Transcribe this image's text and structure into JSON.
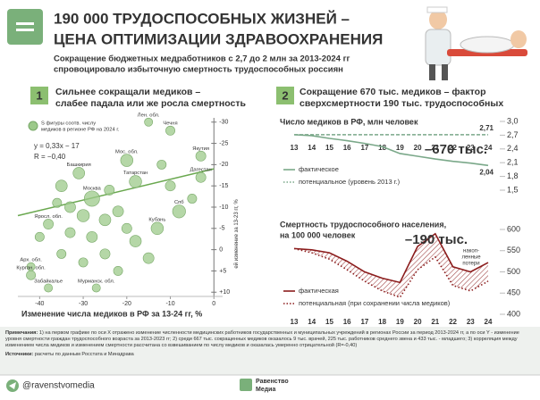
{
  "header": {
    "title": [
      "190 000 ТРУДОСПОСОБНЫХ ЖИЗНЕЙ –",
      "ЦЕНА ОПТИМИЗАЦИИ ЗДРАВООХРАНЕНИЯ"
    ],
    "subtitle": [
      "Сокращение бюджетных медработников с 2,7 до 2 млн за 2013-2024 гг",
      "спровоцировало избыточную смертность трудоспособных россиян"
    ]
  },
  "chart_data": [
    {
      "type": "scatter",
      "panel_number": "1",
      "heading": [
        "Сильнее сокращали медиков –",
        "слабее падала или же росла смертность"
      ],
      "legend_text": [
        "S фигуры соотв. числу",
        "медиков в регионе РФ на 2024 г."
      ],
      "annotations": [
        "y = 0,33x − 17",
        "R = −0,40"
      ],
      "xlabel": "Изменение числа медиков в РФ за 13-24 гг, %",
      "ylabel": "ей изменение за 13-23 гг, %",
      "xlim": [
        -45,
        2
      ],
      "ylim": [
        -31,
        11
      ],
      "y_inverted": true,
      "xticks": [
        -40,
        -30,
        -20,
        -10,
        0
      ],
      "yticks": [
        -30,
        -25,
        -20,
        -15,
        -10,
        -5,
        0,
        {
          "value": 5,
          "label": "+5"
        },
        {
          "value": 10,
          "label": "+10"
        }
      ],
      "color": "#9cc98a",
      "x": [
        -15,
        -10,
        -20,
        -3,
        -31,
        -18,
        -3,
        -28,
        -8,
        -38,
        -13,
        -42,
        -42,
        -38,
        -27,
        -35,
        -33,
        -30,
        -25,
        -22,
        -24,
        -36,
        -33,
        -28,
        -20,
        -18,
        -25,
        -30,
        -35,
        -15,
        -22,
        -10,
        -12,
        -40,
        -5
      ],
      "values": [
        -30,
        -28,
        -21,
        -22,
        -18,
        -16,
        -17,
        -12,
        -9,
        -6,
        -5,
        4,
        6,
        9,
        9,
        -15,
        -10,
        -8,
        -7,
        -9,
        -14,
        -11,
        -4,
        -3,
        -5,
        -2,
        1,
        3,
        1,
        2,
        5,
        -15,
        -20,
        -3,
        -12
      ],
      "sizes": [
        4,
        5,
        9,
        6,
        8,
        9,
        6,
        14,
        10,
        6,
        9,
        4,
        5,
        4,
        4,
        8,
        7,
        9,
        8,
        7,
        6,
        5,
        6,
        7,
        6,
        8,
        6,
        5,
        5,
        7,
        5,
        6,
        5,
        5,
        5
      ],
      "point_labels": [
        "Лен. обл.",
        "Чечня",
        "Мос. обл.",
        "Якутия",
        "Башкирия",
        "Татарстан",
        "Дагестан",
        "Москва",
        "Спб",
        "Яросл. обл.",
        "Кубань",
        "Арх. обл.",
        "Курган. обл.",
        "Забайкалье",
        "Мурманск. обл.",
        null,
        null,
        null,
        null,
        null,
        null,
        null,
        null,
        null,
        null,
        null,
        null,
        null,
        null,
        null,
        null,
        null,
        null,
        null,
        null
      ],
      "trend": {
        "x": [
          -45,
          0
        ],
        "values": [
          -8,
          -19
        ],
        "color": "#6aa84f"
      }
    },
    {
      "type": "line",
      "panel_number": "2",
      "heading": [
        "Сокращение 670 тыс. медиков – фактор",
        "сверхсмертности 190 тыс. трудоспособных"
      ],
      "title": "Число медиков в РФ, млн человек",
      "categories": [
        "13",
        "14",
        "15",
        "16",
        "17",
        "18",
        "19",
        "20",
        "21",
        "22",
        "23",
        "24"
      ],
      "ylim": [
        1.5,
        3.0
      ],
      "yticks": [
        {
          "value": 1.5,
          "label": "1,5"
        },
        {
          "value": 1.8,
          "label": "1,8"
        },
        {
          "value": 2.1,
          "label": "2,1"
        },
        {
          "value": 2.4,
          "label": "2,4"
        },
        {
          "value": 2.7,
          "label": "2,7"
        },
        {
          "value": 3.0,
          "label": "3,0"
        }
      ],
      "series": [
        {
          "name": "фактическое",
          "color": "#7aa889",
          "dash": false,
          "values": [
            2.71,
            2.69,
            2.63,
            2.58,
            2.52,
            2.45,
            2.3,
            2.24,
            2.18,
            2.13,
            2.09,
            2.04
          ],
          "value_labels": [
            null,
            null,
            null,
            null,
            null,
            null,
            null,
            null,
            null,
            null,
            null,
            "2,04"
          ]
        },
        {
          "name": "потенциальное (уровень 2013 г.)",
          "color": "#7aa889",
          "dash": true,
          "values": [
            2.71,
            2.71,
            2.71,
            2.71,
            2.71,
            2.71,
            2.71,
            2.71,
            2.71,
            2.71,
            2.71,
            2.71
          ],
          "value_labels": [
            null,
            null,
            null,
            null,
            null,
            null,
            null,
            null,
            null,
            null,
            null,
            "2,71"
          ]
        }
      ],
      "annotations": [
        "–670 тыс."
      ],
      "annotation_color": "#3d6b45"
    },
    {
      "type": "line",
      "title": [
        "Смертность трудоспособного населения,",
        "на 100 000 человек"
      ],
      "categories": [
        "13",
        "14",
        "15",
        "16",
        "17",
        "18",
        "19",
        "20",
        "21",
        "22",
        "23",
        "24"
      ],
      "ylim": [
        400,
        600
      ],
      "yticks": [
        400,
        450,
        500,
        550,
        600
      ],
      "series": [
        {
          "name": "фактическая",
          "color": "#8b1c1c",
          "dash": false,
          "values": [
            555,
            552,
            545,
            525,
            500,
            485,
            475,
            560,
            590,
            512,
            500,
            522
          ]
        },
        {
          "name": "потенциальная (при сохранении числа медиков)",
          "color": "#8b1c1c",
          "dash": true,
          "values": [
            555,
            545,
            530,
            505,
            478,
            455,
            440,
            505,
            535,
            468,
            455,
            478
          ]
        }
      ],
      "fill_between": true,
      "annotations": [
        "–190 тыс."
      ],
      "annotation_color": "#8b1c1c",
      "loss_label": [
        "накоп-",
        "ленные",
        "потери"
      ]
    }
  ],
  "notes": {
    "label": "Примечания:",
    "text": "1) на первом графике по оси Х отражено изменение численности медицинских работников государственных и муниципальных учреждений в регионах России за период 2013-2024 гг, а по оси Y - изменение уровня смертности граждан трудоспособного возраста за 2013-2023 гг; 2) среди 667 тыс. сокращенных медиков оказалось 9 тыс. врачей, 225 тыс. работников среднего звена и 433 тыс. - младшего; 3) корреляция между изменением числа медиков и изменением смертности рассчитана со взвешиванием по числу медиков и оказалась умеренно отрицательной (R=-0,40)",
    "sources_label": "Источники:",
    "sources": "расчеты по данным Росстата и Минздрава"
  },
  "footer": {
    "handle": "@ravenstvomedia",
    "brand": [
      "Равенство",
      "Медиа"
    ]
  }
}
